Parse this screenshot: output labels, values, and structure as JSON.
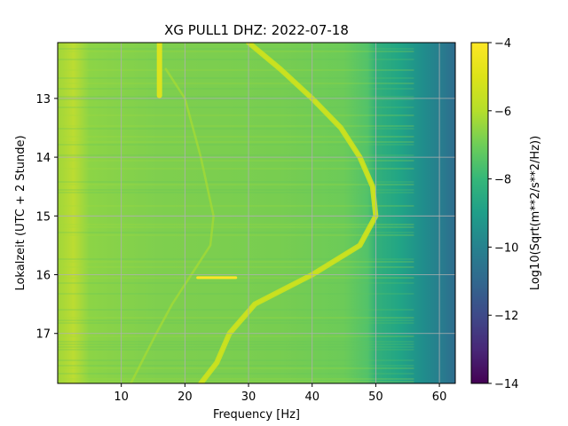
{
  "chart_data": {
    "type": "heatmap",
    "title": "XG PULL1  DHZ: 2022-07-18",
    "xlabel": "Frequency [Hz]",
    "ylabel": "Lokalzeit (UTC + 2 Stunde)",
    "xlim": [
      0,
      62.5
    ],
    "ylim": [
      17.85,
      12.05
    ],
    "xticks": [
      10,
      20,
      30,
      40,
      50,
      60
    ],
    "yticks": [
      13,
      14,
      15,
      16,
      17
    ],
    "grid": true,
    "colormap": "viridis",
    "colorbar": {
      "label": "Log10(Sqrt(m**2/s**2/Hz))",
      "range": [
        -14,
        -4
      ],
      "ticks": [
        -4,
        -6,
        -8,
        -10,
        -12,
        -14
      ]
    },
    "features": [
      {
        "name": "main spectral line",
        "time": [
          12.05,
          12.5,
          13.0,
          13.5,
          14.0,
          14.5,
          15.0,
          15.5,
          16.0,
          16.5,
          17.0,
          17.5,
          17.85
        ],
        "frequency": [
          30,
          35,
          40,
          44.5,
          47.5,
          49.5,
          50,
          47.5,
          40,
          31,
          27,
          25,
          22.5
        ]
      },
      {
        "name": "faint secondary line",
        "time": [
          12.5,
          13.0,
          14.0,
          15.0,
          15.5,
          16.0,
          16.5,
          17.0,
          17.85
        ],
        "frequency": [
          17,
          20,
          22.5,
          24.5,
          24,
          21,
          18,
          15.5,
          11.5
        ]
      },
      {
        "name": "banding near 16 Hz",
        "time": [
          12.05,
          12.95
        ],
        "frequency": [
          16,
          16
        ]
      },
      {
        "name": "horizontal burst",
        "time": [
          16.05,
          16.05
        ],
        "frequency": [
          22,
          28
        ]
      }
    ]
  }
}
